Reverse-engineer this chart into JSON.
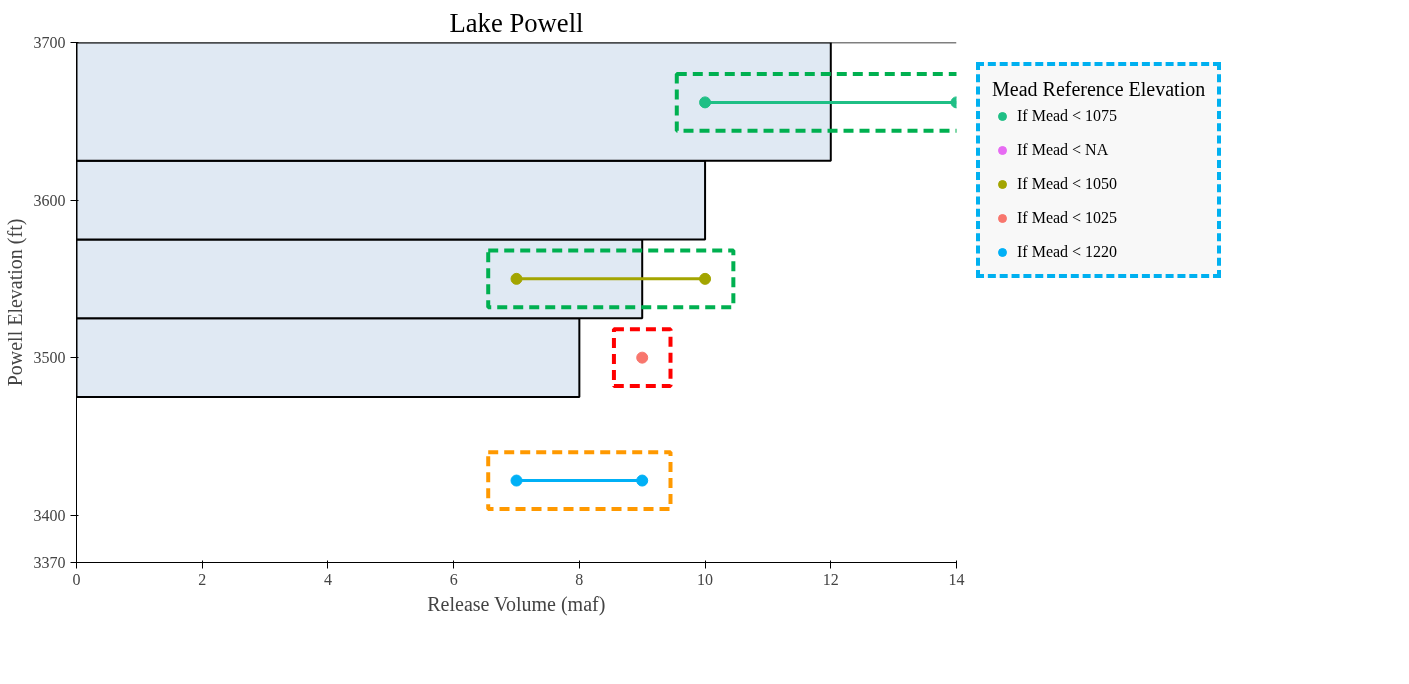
{
  "chart_data": {
    "type": "line",
    "orientation": "horizontal",
    "title": "Lake Powell",
    "xlabel": "Release Volume (maf)",
    "ylabel": "Powell Elevation (ft)",
    "legend_title": "Mead Reference Elevation",
    "xlim": [
      0,
      14
    ],
    "xticks": [
      0,
      2,
      4,
      6,
      8,
      10,
      12,
      14
    ],
    "ylim": [
      3370,
      3700
    ],
    "yticks": [
      3370,
      3400,
      3500,
      3600,
      3700
    ],
    "grid": false,
    "legend": "right",
    "marker": "circle",
    "line_style": "solid",
    "series": [
      {
        "type": "bar",
        "color": "#e0e9f3",
        "x": [
          3500,
          3550,
          3600,
          3662.5
        ],
        "values": [
          8,
          9,
          10,
          12
        ]
      },
      {
        "name": "If Mead < 1075",
        "color": "#1fbf85",
        "x": [
          3662,
          3662
        ],
        "values": [
          10,
          14
        ]
      },
      {
        "name": "If Mead < NA",
        "color": "#e76bf3"
      },
      {
        "name": "If Mead < 1050",
        "color": "#a3a500",
        "x": [
          3550,
          3550
        ],
        "values": [
          7,
          10
        ]
      },
      {
        "name": "If Mead < 1025",
        "color": "#f8766d",
        "x": [
          3500
        ],
        "values": [
          9
        ]
      },
      {
        "name": "If Mead < 1220",
        "color": "#00b0f6",
        "x": [
          3422,
          3422
        ],
        "values": [
          7,
          9
        ]
      }
    ]
  }
}
